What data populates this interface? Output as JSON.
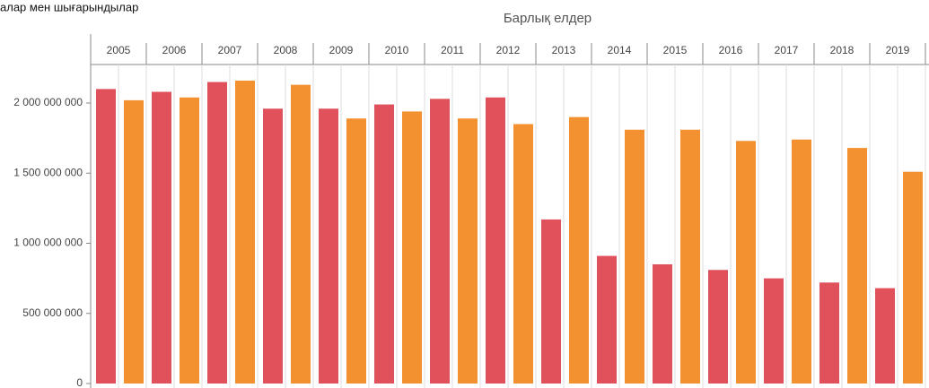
{
  "chart_data": {
    "type": "bar",
    "title": "алар мен шығарындылар",
    "subtitle": "Барлық елдер",
    "categories": [
      "2005",
      "2006",
      "2007",
      "2008",
      "2009",
      "2010",
      "2011",
      "2012",
      "2013",
      "2014",
      "2015",
      "2016",
      "2017",
      "2018",
      "2019"
    ],
    "series": [
      {
        "color": "#e0515b",
        "values": [
          2100000000,
          2080000000,
          2150000000,
          1960000000,
          1960000000,
          1990000000,
          2030000000,
          2040000000,
          1170000000,
          910000000,
          850000000,
          810000000,
          750000000,
          720000000,
          680000000
        ]
      },
      {
        "color": "#f39131",
        "values": [
          2020000000,
          2040000000,
          2160000000,
          2130000000,
          1890000000,
          1940000000,
          1890000000,
          1850000000,
          1900000000,
          1810000000,
          1810000000,
          1730000000,
          1740000000,
          1680000000,
          1510000000
        ]
      }
    ],
    "ylim": [
      0,
      2000000000
    ],
    "yticks": [
      {
        "value": 0,
        "label": "0"
      },
      {
        "value": 500000000,
        "label": "500 000 000"
      },
      {
        "value": 1000000000,
        "label": "1 000 000 000"
      },
      {
        "value": 1500000000,
        "label": "1 500 000 000"
      },
      {
        "value": 2000000000,
        "label": "2 000 000 000"
      }
    ]
  }
}
